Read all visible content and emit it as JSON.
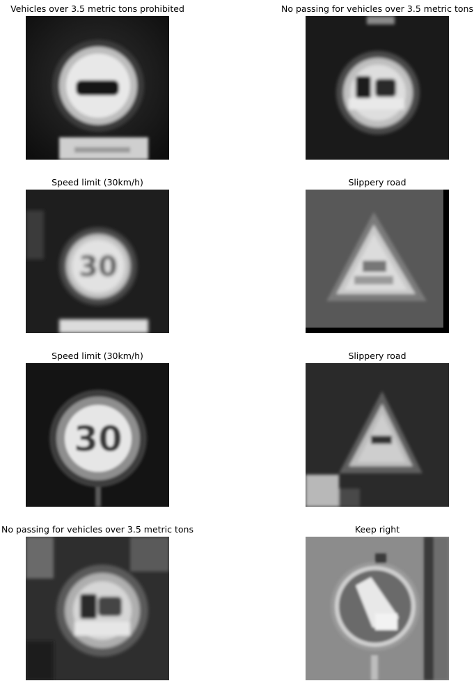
{
  "figure": {
    "panels": [
      {
        "title": "Vehicles over 3.5 metric tons prohibited",
        "sign": "no-heavy-vehicles"
      },
      {
        "title": "No passing for vehicles over 3.5 metric tons",
        "sign": "no-passing-heavy"
      },
      {
        "title": "Speed limit (30km/h)",
        "sign": "speed-limit"
      },
      {
        "title": "Slippery road",
        "sign": "slippery-triangle"
      },
      {
        "title": "Speed limit (30km/h)",
        "sign": "speed-limit"
      },
      {
        "title": "Slippery road",
        "sign": "slippery-triangle"
      },
      {
        "title": "No passing for vehicles over 3.5 metric tons",
        "sign": "no-passing-heavy"
      },
      {
        "title": "Keep right",
        "sign": "keep-right"
      }
    ]
  }
}
